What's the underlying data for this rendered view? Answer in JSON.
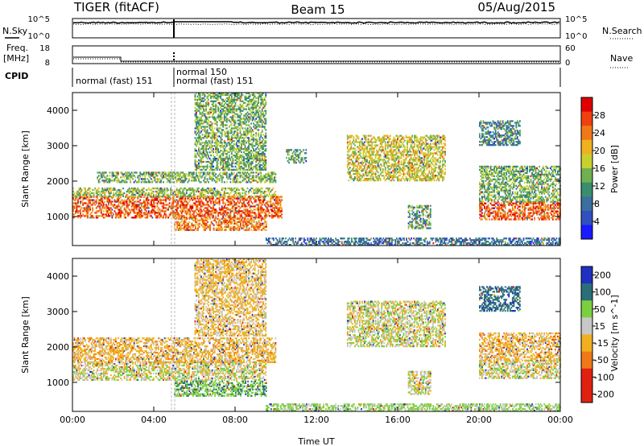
{
  "header": {
    "radar": "TIGER (fitACF)",
    "beam": "Beam 15",
    "date": "05/Aug/2015"
  },
  "strip_panels": {
    "nsky": {
      "label": "N.Sky",
      "ticks": [
        "10^5",
        "10^0"
      ]
    },
    "nsearch": {
      "label": "N.Search",
      "ticks": [
        "10^5",
        "10^0"
      ]
    },
    "freq": {
      "label_line1": "Freq.",
      "label_line2": "[MHz]",
      "ticks": [
        "18",
        "8"
      ]
    },
    "nave": {
      "label": "Nave",
      "ticks": [
        "60",
        "0"
      ]
    },
    "cpid": {
      "label": "CPID",
      "modes": [
        "normal (fast) 151",
        "normal 150",
        "normal (fast) 151"
      ]
    }
  },
  "chart_data": [
    {
      "type": "heatmap",
      "parameter": "power",
      "ylabel": "Slant Range [km]",
      "xlabel": "",
      "x_range_hours": [
        0,
        24
      ],
      "ylim": [
        180,
        4500
      ],
      "yticks": [
        "1000",
        "2000",
        "3000",
        "4000"
      ],
      "colorbar": {
        "label": "Power [dB]",
        "ticks": [
          "28",
          "24",
          "20",
          "16",
          "12",
          "8",
          "4"
        ],
        "scale": [
          0,
          32
        ]
      },
      "regions": [
        {
          "t0": 0.0,
          "t1": 10.3,
          "r0": 950,
          "r1": 1550,
          "value": 26
        },
        {
          "t0": 0.0,
          "t1": 10.0,
          "r0": 1550,
          "r1": 1800,
          "value": 16
        },
        {
          "t0": 1.2,
          "t1": 10.0,
          "r0": 1950,
          "r1": 2250,
          "value": 14
        },
        {
          "t0": 5.0,
          "t1": 9.5,
          "r0": 600,
          "r1": 950,
          "value": 24
        },
        {
          "t0": 6.0,
          "t1": 9.5,
          "r0": 2300,
          "r1": 4500,
          "value": 14
        },
        {
          "t0": 10.5,
          "t1": 11.5,
          "r0": 2500,
          "r1": 2900,
          "value": 12
        },
        {
          "t0": 13.5,
          "t1": 18.3,
          "r0": 2000,
          "r1": 3300,
          "value": 18
        },
        {
          "t0": 16.5,
          "t1": 17.6,
          "r0": 650,
          "r1": 1300,
          "value": 12
        },
        {
          "t0": 20.0,
          "t1": 24.0,
          "r0": 900,
          "r1": 1400,
          "value": 26
        },
        {
          "t0": 20.0,
          "t1": 24.0,
          "r0": 1400,
          "r1": 2400,
          "value": 14
        },
        {
          "t0": 20.0,
          "t1": 22.0,
          "r0": 3000,
          "r1": 3700,
          "value": 10
        },
        {
          "t0": 9.5,
          "t1": 24.0,
          "r0": 180,
          "r1": 400,
          "value": 8
        }
      ]
    },
    {
      "type": "heatmap",
      "parameter": "velocity",
      "ylabel": "Slant Range [km]",
      "xlabel": "Time UT",
      "x_range_hours": [
        0,
        24
      ],
      "ylim": [
        180,
        4500
      ],
      "xticks": [
        "00:00",
        "04:00",
        "08:00",
        "12:00",
        "16:00",
        "20:00",
        "00:00"
      ],
      "yticks": [
        "1000",
        "2000",
        "3000",
        "4000"
      ],
      "colorbar": {
        "label": "Velocity [m s^-1]",
        "ticks": [
          "200",
          "100",
          "50",
          "15",
          "-15",
          "-50",
          "-100",
          "-200"
        ],
        "scale": [
          -250,
          250
        ]
      },
      "regions": [
        {
          "t0": 0.0,
          "t1": 9.5,
          "r0": 1050,
          "r1": 1550,
          "value": 0
        },
        {
          "t0": 0.0,
          "t1": 10.0,
          "r0": 1550,
          "r1": 2250,
          "value": -40
        },
        {
          "t0": 5.0,
          "t1": 9.5,
          "r0": 600,
          "r1": 1050,
          "value": 60
        },
        {
          "t0": 6.0,
          "t1": 9.5,
          "r0": 2300,
          "r1": 4500,
          "value": -30
        },
        {
          "t0": 13.5,
          "t1": 18.3,
          "r0": 2000,
          "r1": 3300,
          "value": 0
        },
        {
          "t0": 16.5,
          "t1": 17.6,
          "r0": 650,
          "r1": 1300,
          "value": 0
        },
        {
          "t0": 20.0,
          "t1": 24.0,
          "r0": 1100,
          "r1": 1600,
          "value": 0
        },
        {
          "t0": 20.0,
          "t1": 24.0,
          "r0": 1600,
          "r1": 2400,
          "value": -40
        },
        {
          "t0": 20.0,
          "t1": 22.0,
          "r0": 3000,
          "r1": 3700,
          "value": 120
        },
        {
          "t0": 9.5,
          "t1": 24.0,
          "r0": 180,
          "r1": 400,
          "value": 30
        }
      ]
    }
  ],
  "colors": {
    "power": [
      "#1a1aff",
      "#3050c0",
      "#3a70a0",
      "#3a8e6e",
      "#6fb050",
      "#c8d030",
      "#f0b020",
      "#f07818",
      "#f04010",
      "#e00000"
    ],
    "velocity": {
      "pos_high": "#2030c0",
      "pos_mid": "#2a6e7a",
      "pos_low": "#7cd040",
      "near_zero": "#c8c8c8",
      "neg_low": "#f0b020",
      "neg_mid": "#f07818",
      "neg_high": "#e02010"
    }
  }
}
